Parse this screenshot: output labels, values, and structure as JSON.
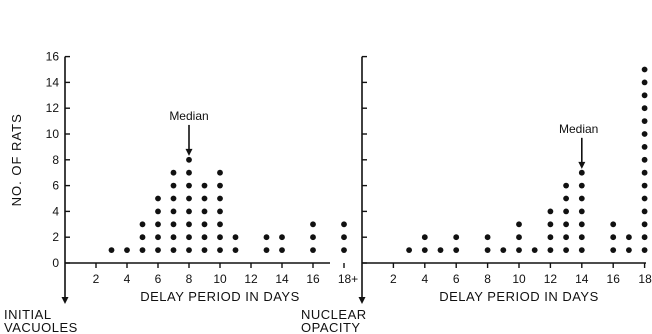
{
  "chart_data": [
    {
      "type": "scatter",
      "panel": "left",
      "ylabel": "NO. OF RATS",
      "xlabel": "DELAY PERIOD IN DAYS",
      "x_tick_labels": [
        "2",
        "4",
        "6",
        "8",
        "10",
        "12",
        "14",
        "16",
        "18+"
      ],
      "y_tick_labels": [
        "0",
        "2",
        "4",
        "6",
        "8",
        "10",
        "12",
        "14",
        "16"
      ],
      "xlim": [
        0,
        18.5
      ],
      "ylim": [
        0,
        16
      ],
      "grid": false,
      "origin_label": "INITIAL\nVACUOLES",
      "median_label": "Median",
      "median_x": 8,
      "median_label_x": 8,
      "median_tip_y": 8.3,
      "columns": [
        {
          "x": 3,
          "count": 1
        },
        {
          "x": 4,
          "count": 1
        },
        {
          "x": 5,
          "count": 3
        },
        {
          "x": 6,
          "count": 5
        },
        {
          "x": 7,
          "count": 7
        },
        {
          "x": 8,
          "count": 8
        },
        {
          "x": 9,
          "count": 6
        },
        {
          "x": 10,
          "count": 7
        },
        {
          "x": 11,
          "count": 2
        },
        {
          "x": 13,
          "count": 2
        },
        {
          "x": 14,
          "count": 2
        },
        {
          "x": 16,
          "count": 3
        },
        {
          "x": 18,
          "count": 3
        }
      ]
    },
    {
      "type": "scatter",
      "panel": "right",
      "ylabel": "",
      "xlabel": "DELAY PERIOD IN DAYS",
      "x_tick_labels": [
        "2",
        "4",
        "6",
        "8",
        "10",
        "12",
        "14",
        "16",
        "18+"
      ],
      "y_tick_labels": [],
      "xlim": [
        0,
        18.5
      ],
      "ylim": [
        0,
        16
      ],
      "grid": false,
      "origin_label": "NUCLEAR\nOPACITY",
      "median_label": "Median",
      "median_x": 14,
      "median_label_x": 13.8,
      "median_tip_y": 7.3,
      "columns": [
        {
          "x": 3,
          "count": 1
        },
        {
          "x": 4,
          "count": 2
        },
        {
          "x": 5,
          "count": 1
        },
        {
          "x": 6,
          "count": 2
        },
        {
          "x": 8,
          "count": 2
        },
        {
          "x": 9,
          "count": 1
        },
        {
          "x": 10,
          "count": 3
        },
        {
          "x": 11,
          "count": 1
        },
        {
          "x": 12,
          "count": 4
        },
        {
          "x": 13,
          "count": 6
        },
        {
          "x": 14,
          "count": 7
        },
        {
          "x": 16,
          "count": 3
        },
        {
          "x": 17,
          "count": 2
        },
        {
          "x": 18,
          "count": 15
        }
      ]
    }
  ]
}
